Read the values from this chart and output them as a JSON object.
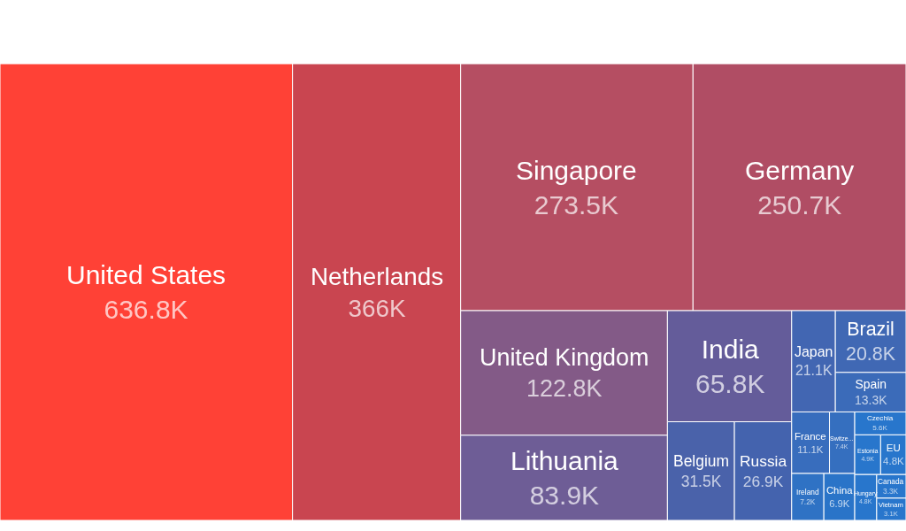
{
  "chart_data": {
    "type": "other",
    "categories": [
      "United States",
      "Netherlands",
      "Singapore",
      "Germany",
      "United Kingdom",
      "Lithuania",
      "India",
      "Belgium",
      "Russia",
      "Japan",
      "Brazil",
      "Spain",
      "France",
      "Switze...",
      "Ireland",
      "China",
      "Czechia",
      "Estonia",
      "EU",
      "Hungary",
      "Canada",
      "Vietnam"
    ],
    "values": [
      636.8,
      366,
      273.5,
      250.7,
      122.8,
      83.9,
      65.8,
      31.5,
      26.9,
      21.1,
      20.8,
      13.3,
      11.1,
      7.4,
      7.2,
      6.9,
      5.6,
      4.9,
      4.8,
      4.8,
      3.3,
      3.1
    ],
    "value_labels": [
      "636.8K",
      "366K",
      "273.5K",
      "250.7K",
      "122.8K",
      "83.9K",
      "65.8K",
      "31.5K",
      "26.9K",
      "21.1K",
      "20.8K",
      "13.3K",
      "11.1K",
      "7.4K",
      "7.2K",
      "6.9K",
      "5.6K",
      "4.9K",
      "4.8K",
      "4.8K",
      "3.3K",
      "3.1K"
    ],
    "colors": [
      "#ff4136",
      "#c94550",
      "#b54e62",
      "#b04d64",
      "#835a87",
      "#6e5d96",
      "#645c9a",
      "#4a62aa",
      "#4463ae",
      "#4266b2",
      "#4068b4",
      "#3b6bb9",
      "#386dbd",
      "#356fbf",
      "#2f72c4",
      "#2a74c8",
      "#2876cc",
      "#2876cc",
      "#2876cc",
      "#2876cc",
      "#2876cc",
      "#2876cc"
    ]
  }
}
